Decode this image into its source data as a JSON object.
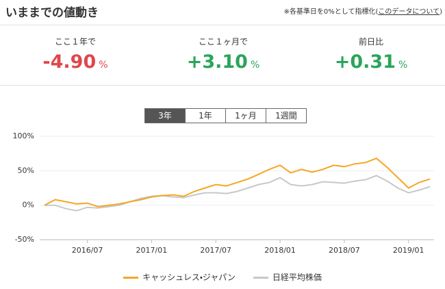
{
  "header": {
    "title": "いままでの値動き",
    "note": "※各基準日を0%として指標化(",
    "link": "このデータについて",
    "note_end": ")"
  },
  "stats": [
    {
      "label": "ここ１年で",
      "value": "-4.90",
      "unit": "%",
      "color": "#e0474c"
    },
    {
      "label": "ここ１ヶ月で",
      "value": "+3.10",
      "unit": "%",
      "color": "#2aa55b"
    },
    {
      "label": "前日比",
      "value": "+0.31",
      "unit": "%",
      "color": "#2aa55b"
    }
  ],
  "tabs": [
    "3年",
    "1年",
    "1ヶ月",
    "1週間"
  ],
  "chart_data": {
    "type": "line",
    "x": [
      "2016/03",
      "2016/04",
      "2016/05",
      "2016/06",
      "2016/07",
      "2016/08",
      "2016/09",
      "2016/10",
      "2016/11",
      "2016/12",
      "2017/01",
      "2017/02",
      "2017/03",
      "2017/04",
      "2017/05",
      "2017/06",
      "2017/07",
      "2017/08",
      "2017/09",
      "2017/10",
      "2017/11",
      "2017/12",
      "2018/01",
      "2018/02",
      "2018/03",
      "2018/04",
      "2018/05",
      "2018/06",
      "2018/07",
      "2018/08",
      "2018/09",
      "2018/10",
      "2018/11",
      "2018/12",
      "2019/01",
      "2019/02",
      "2019/03"
    ],
    "xticks": [
      "2016/07",
      "2017/01",
      "2017/07",
      "2018/01",
      "2018/07",
      "2019/01"
    ],
    "series": [
      {
        "name": "キャッシュレス・ジャパン",
        "color": "#f5a623",
        "values": [
          0,
          8,
          5,
          2,
          3,
          -2,
          0,
          2,
          5,
          8,
          12,
          14,
          15,
          13,
          20,
          25,
          30,
          28,
          33,
          38,
          45,
          52,
          58,
          47,
          52,
          48,
          52,
          58,
          56,
          60,
          62,
          68,
          55,
          40,
          25,
          33,
          38
        ]
      },
      {
        "name": "日経平均株価",
        "color": "#c8c8cc",
        "values": [
          0,
          0,
          -5,
          -8,
          -3,
          -4,
          -2,
          0,
          5,
          10,
          13,
          14,
          12,
          11,
          15,
          18,
          18,
          17,
          20,
          25,
          30,
          33,
          40,
          30,
          28,
          30,
          34,
          33,
          32,
          35,
          37,
          43,
          35,
          25,
          18,
          22,
          27
        ]
      }
    ],
    "ylim": [
      -50,
      100
    ],
    "yticks": [
      {
        "value": -50,
        "label": "-50%"
      },
      {
        "value": 0,
        "label": "0%"
      },
      {
        "value": 50,
        "label": "50%"
      },
      {
        "value": 100,
        "label": "100%"
      }
    ],
    "grid": true
  }
}
